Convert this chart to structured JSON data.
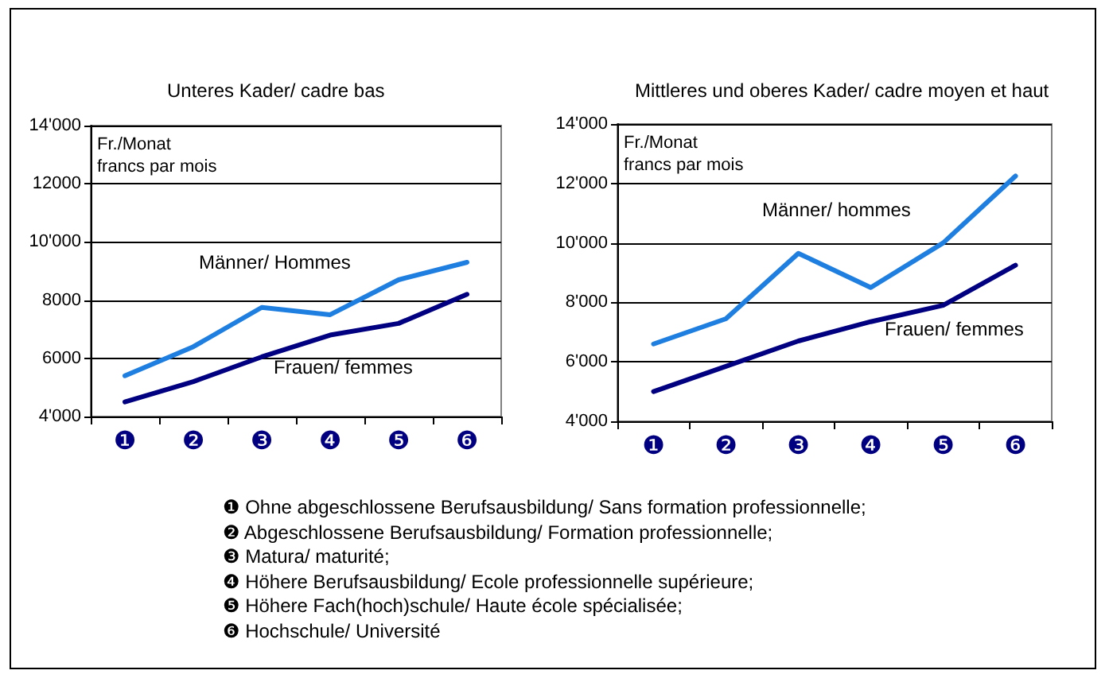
{
  "chart_data": [
    {
      "type": "line",
      "title": "Unteres Kader/ cadre bas",
      "ylabel": "Fr./Monat\nfrancs par mois",
      "categories": [
        "❶",
        "❷",
        "❸",
        "❹",
        "❺",
        "❻"
      ],
      "series": [
        {
          "name": "Männer/ Hommes",
          "color": "#1f7fe0",
          "values": [
            5400,
            6400,
            7750,
            7500,
            8700,
            9300
          ]
        },
        {
          "name": "Frauen/ femmes",
          "color": "#000080",
          "values": [
            4500,
            5200,
            6050,
            6800,
            7200,
            8200
          ]
        }
      ],
      "ylim": [
        4000,
        14000
      ],
      "yticks": [
        {
          "value": 4000,
          "label": "4'000"
        },
        {
          "value": 6000,
          "label": "6000"
        },
        {
          "value": 8000,
          "label": "8000"
        },
        {
          "value": 10000,
          "label": "10'000"
        },
        {
          "value": 12000,
          "label": "12000"
        },
        {
          "value": 14000,
          "label": "14'000"
        }
      ],
      "grid": "y",
      "marker": "none"
    },
    {
      "type": "line",
      "title": "Mittleres und oberes Kader/ cadre moyen et haut",
      "ylabel": "Fr./Monat\nfrancs par mois",
      "categories": [
        "❶",
        "❷",
        "❸",
        "❹",
        "❺",
        "❻"
      ],
      "series": [
        {
          "name": "Männer/ hommes",
          "color": "#1f7fe0",
          "values": [
            6600,
            7450,
            9650,
            8500,
            10000,
            12250
          ]
        },
        {
          "name": "Frauen/ femmes",
          "color": "#000080",
          "values": [
            5000,
            5850,
            6700,
            7350,
            7900,
            9250
          ]
        }
      ],
      "ylim": [
        4000,
        14000
      ],
      "yticks": [
        {
          "value": 4000,
          "label": "4'000"
        },
        {
          "value": 6000,
          "label": "6'000"
        },
        {
          "value": 8000,
          "label": "8'000"
        },
        {
          "value": 10000,
          "label": "10'000"
        },
        {
          "value": 12000,
          "label": "12'000"
        },
        {
          "value": 14000,
          "label": "14'000"
        }
      ],
      "grid": "y",
      "marker": "none"
    },
    {
      "type": "other",
      "annotations": [
        "❶ Ohne abgeschlossene Berufsausbildung/ Sans formation professionnelle;",
        "❷ Abgeschlossene Berufsausbildung/ Formation professionnelle;",
        "❸ Matura/ maturité;",
        "❹ Höhere Berufsausbildung/ Ecole professionnelle supérieure;",
        "❺ Höhere Fach(hoch)schule/ Haute école spécialisée;",
        "❻ Hochschule/ Université"
      ]
    }
  ]
}
